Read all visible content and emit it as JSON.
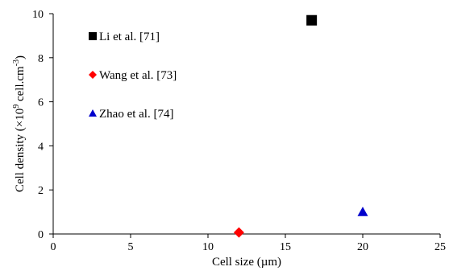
{
  "chart_data": {
    "type": "scatter",
    "title": "",
    "xlabel": "Cell size (µm)",
    "ylabel": {
      "pre": "Cell density (×10",
      "sup1": "9",
      "mid": " cell.cm",
      "sup2": "-3",
      "post": ")"
    },
    "xlim": [
      0,
      25
    ],
    "ylim": [
      0,
      10
    ],
    "xticks": [
      "0",
      "5",
      "10",
      "15",
      "20",
      "25"
    ],
    "yticks": [
      "0",
      "2",
      "4",
      "6",
      "8",
      "10"
    ],
    "grid": false,
    "legend_position": "left",
    "series": [
      {
        "name": "Li et al. [71]",
        "marker": "square",
        "color": "#000000",
        "x": [
          16.7
        ],
        "y": [
          9.7
        ]
      },
      {
        "name": "Wang et al. [73]",
        "marker": "diamond",
        "color": "#ff0000",
        "x": [
          12.0
        ],
        "y": [
          0.07
        ]
      },
      {
        "name": "Zhao et al. [74]",
        "marker": "triangle",
        "color": "#0000cc",
        "x": [
          20.0
        ],
        "y": [
          1.0
        ]
      }
    ]
  }
}
